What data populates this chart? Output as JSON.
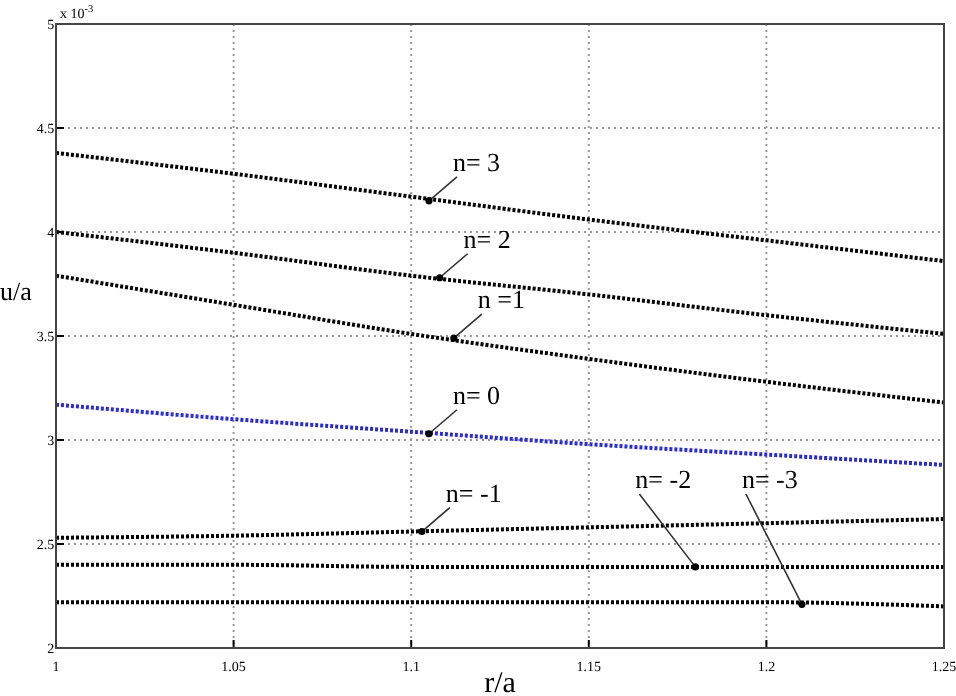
{
  "chart_data": {
    "type": "line",
    "xlabel": "r/a",
    "ylabel": "u/a",
    "x": [
      1,
      1.05,
      1.1,
      1.15,
      1.2,
      1.25
    ],
    "series": [
      {
        "color": "#000000",
        "values": [
          4.38,
          4.28,
          4.17,
          4.06,
          3.96,
          3.86
        ]
      },
      {
        "color": "#000000",
        "values": [
          4.0,
          3.9,
          3.79,
          3.7,
          3.6,
          3.51
        ]
      },
      {
        "color": "#000000",
        "values": [
          3.79,
          3.65,
          3.51,
          3.39,
          3.28,
          3.18
        ]
      },
      {
        "color": "#2b2bd0",
        "values": [
          3.17,
          3.1,
          3.04,
          2.98,
          2.93,
          2.88
        ]
      },
      {
        "color": "#000000",
        "values": [
          2.53,
          2.54,
          2.56,
          2.58,
          2.6,
          2.62
        ]
      },
      {
        "color": "#000000",
        "values": [
          2.4,
          2.4,
          2.39,
          2.39,
          2.39,
          2.39
        ]
      },
      {
        "color": "#000000",
        "values": [
          2.22,
          2.22,
          2.22,
          2.22,
          2.22,
          2.2
        ]
      }
    ],
    "xlim": [
      1,
      1.25
    ],
    "xticks": [
      1,
      1.05,
      1.1,
      1.15,
      1.2,
      1.25
    ],
    "ylim": [
      2,
      5
    ],
    "yticks": [
      2,
      2.5,
      3,
      3.5,
      4,
      4.5,
      5
    ],
    "grid": true,
    "line_style": "dotted",
    "marker": "none",
    "annotations": [
      "x 10$^{-3}$",
      {
        "text": "n= 3",
        "x": 1.105,
        "y": 4.15
      },
      {
        "text": "n= 2",
        "x": 1.108,
        "y": 3.78
      },
      {
        "text": "n =1",
        "x": 1.112,
        "y": 3.49
      },
      {
        "text": "n= 0",
        "x": 1.105,
        "y": 3.03
      },
      {
        "text": "n= -1",
        "x": 1.103,
        "y": 2.56
      },
      {
        "text": "n= -2",
        "x": 1.18,
        "y": 2.39
      },
      {
        "text": "n= -3",
        "x": 1.21,
        "y": 2.21
      }
    ]
  }
}
